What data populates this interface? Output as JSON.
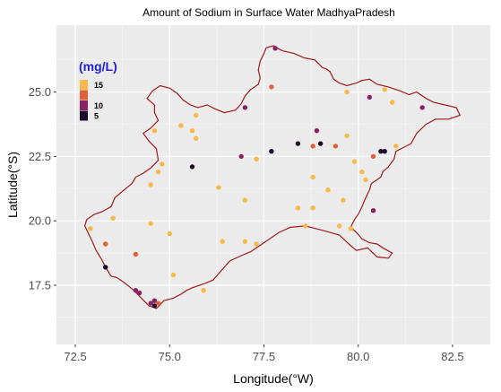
{
  "chart_data": {
    "type": "scatter",
    "title": "Amount of Sodium in Surface Water MadhyaPradesh",
    "xlabel": "Longitude(°W)",
    "ylabel": "Latitude(°S)",
    "xlim": [
      72.0,
      83.5
    ],
    "ylim": [
      15.2,
      27.6
    ],
    "x_ticks": [
      72.5,
      75.0,
      77.5,
      80.0,
      82.5
    ],
    "x_tick_labels": [
      "72.5",
      "75.0",
      "77.5",
      "80.0",
      "82.5"
    ],
    "y_ticks": [
      17.5,
      20.0,
      22.5,
      25.0
    ],
    "y_tick_labels": [
      "17.5",
      "20.0",
      "22.5",
      "25.0"
    ],
    "grid": true,
    "panel_background": "#ebebeb",
    "boundary_color": "#a01c1c",
    "legend": {
      "title": "(mg/L)",
      "title_color": "#1f1fd6",
      "position": "top-left",
      "entries": [
        {
          "label": "15",
          "color": "#f6b94a"
        },
        {
          "label": "",
          "color": "#e0623c"
        },
        {
          "label": "10",
          "color": "#8a2165"
        },
        {
          "label": "5",
          "color": "#1d0b2e"
        }
      ]
    },
    "boundary": [
      [
        77.56,
        26.72
      ],
      [
        77.76,
        26.8
      ],
      [
        77.86,
        26.7
      ],
      [
        78.0,
        26.6
      ],
      [
        78.3,
        26.5
      ],
      [
        78.57,
        26.33
      ],
      [
        78.85,
        26.25
      ],
      [
        78.95,
        26.1
      ],
      [
        79.05,
        25.95
      ],
      [
        79.15,
        25.9
      ],
      [
        79.25,
        25.8
      ],
      [
        79.35,
        25.5
      ],
      [
        79.5,
        25.35
      ],
      [
        79.7,
        25.25
      ],
      [
        79.95,
        25.35
      ],
      [
        80.1,
        25.45
      ],
      [
        80.3,
        25.5
      ],
      [
        80.5,
        25.3
      ],
      [
        80.8,
        25.2
      ],
      [
        81.1,
        25.05
      ],
      [
        81.35,
        24.9
      ],
      [
        81.55,
        25.0
      ],
      [
        81.8,
        24.75
      ],
      [
        82.0,
        24.6
      ],
      [
        82.3,
        24.5
      ],
      [
        82.6,
        24.4
      ],
      [
        82.7,
        24.1
      ],
      [
        82.4,
        23.95
      ],
      [
        82.05,
        23.95
      ],
      [
        81.8,
        23.75
      ],
      [
        81.55,
        23.4
      ],
      [
        81.4,
        23.0
      ],
      [
        81.2,
        22.85
      ],
      [
        81.0,
        22.7
      ],
      [
        80.95,
        22.4
      ],
      [
        80.8,
        22.1
      ],
      [
        80.65,
        21.9
      ],
      [
        80.6,
        21.7
      ],
      [
        80.45,
        21.55
      ],
      [
        80.35,
        21.45
      ],
      [
        80.3,
        21.2
      ],
      [
        80.2,
        20.9
      ],
      [
        80.1,
        20.55
      ],
      [
        80.0,
        20.25
      ],
      [
        79.9,
        20.05
      ],
      [
        79.8,
        19.75
      ],
      [
        79.95,
        19.55
      ],
      [
        80.1,
        19.3
      ],
      [
        80.3,
        19.15
      ],
      [
        80.5,
        19.1
      ],
      [
        80.65,
        18.95
      ],
      [
        80.9,
        18.75
      ],
      [
        80.8,
        18.55
      ],
      [
        80.5,
        18.6
      ],
      [
        80.25,
        18.95
      ],
      [
        79.95,
        18.85
      ],
      [
        79.75,
        19.1
      ],
      [
        79.5,
        19.45
      ],
      [
        79.25,
        19.55
      ],
      [
        79.0,
        19.65
      ],
      [
        78.6,
        19.8
      ],
      [
        78.2,
        19.75
      ],
      [
        77.9,
        19.55
      ],
      [
        77.6,
        19.25
      ],
      [
        77.35,
        19.0
      ],
      [
        77.15,
        18.8
      ],
      [
        76.9,
        18.65
      ],
      [
        76.6,
        18.45
      ],
      [
        76.45,
        18.2
      ],
      [
        76.3,
        17.95
      ],
      [
        76.15,
        17.7
      ],
      [
        75.9,
        17.55
      ],
      [
        75.6,
        17.4
      ],
      [
        75.45,
        17.3
      ],
      [
        75.3,
        17.15
      ],
      [
        75.1,
        17.0
      ],
      [
        74.85,
        16.9
      ],
      [
        74.65,
        16.6
      ],
      [
        74.45,
        16.7
      ],
      [
        74.25,
        17.0
      ],
      [
        74.05,
        17.3
      ],
      [
        73.8,
        17.6
      ],
      [
        73.6,
        17.8
      ],
      [
        73.45,
        17.85
      ],
      [
        73.3,
        18.2
      ],
      [
        73.2,
        18.5
      ],
      [
        73.05,
        18.85
      ],
      [
        72.95,
        19.2
      ],
      [
        72.85,
        19.5
      ],
      [
        72.75,
        19.8
      ],
      [
        72.8,
        20.05
      ],
      [
        73.0,
        20.25
      ],
      [
        73.2,
        20.35
      ],
      [
        73.45,
        20.55
      ],
      [
        73.55,
        20.9
      ],
      [
        73.75,
        21.15
      ],
      [
        74.0,
        21.45
      ],
      [
        74.1,
        21.7
      ],
      [
        74.3,
        21.85
      ],
      [
        74.5,
        22.05
      ],
      [
        74.7,
        22.35
      ],
      [
        74.65,
        22.8
      ],
      [
        74.45,
        23.1
      ],
      [
        74.3,
        23.4
      ],
      [
        74.5,
        23.6
      ],
      [
        74.7,
        23.9
      ],
      [
        74.6,
        24.2
      ],
      [
        74.6,
        24.5
      ],
      [
        74.4,
        24.75
      ],
      [
        74.55,
        25.05
      ],
      [
        74.75,
        25.25
      ],
      [
        75.0,
        25.15
      ],
      [
        75.2,
        24.95
      ],
      [
        75.35,
        24.7
      ],
      [
        75.55,
        24.5
      ],
      [
        75.75,
        24.4
      ],
      [
        76.0,
        24.5
      ],
      [
        76.2,
        24.35
      ],
      [
        76.45,
        24.2
      ],
      [
        76.75,
        24.3
      ],
      [
        76.9,
        24.55
      ],
      [
        77.0,
        24.85
      ],
      [
        77.15,
        25.1
      ],
      [
        77.35,
        25.3
      ],
      [
        77.4,
        25.55
      ],
      [
        77.35,
        25.85
      ],
      [
        77.4,
        26.2
      ],
      [
        77.5,
        26.5
      ],
      [
        77.56,
        26.72
      ]
    ],
    "points": [
      {
        "x": 77.8,
        "y": 26.7,
        "level": 10
      },
      {
        "x": 77.7,
        "y": 25.2,
        "level": 12
      },
      {
        "x": 80.7,
        "y": 25.1,
        "level": 15
      },
      {
        "x": 79.7,
        "y": 25.0,
        "level": 15
      },
      {
        "x": 80.3,
        "y": 24.8,
        "level": 10
      },
      {
        "x": 80.9,
        "y": 24.6,
        "level": 15
      },
      {
        "x": 81.7,
        "y": 24.4,
        "level": 10
      },
      {
        "x": 77.0,
        "y": 24.4,
        "level": 10
      },
      {
        "x": 75.7,
        "y": 24.1,
        "level": 15
      },
      {
        "x": 75.3,
        "y": 23.7,
        "level": 15
      },
      {
        "x": 75.6,
        "y": 23.5,
        "level": 15
      },
      {
        "x": 74.6,
        "y": 23.5,
        "level": 15
      },
      {
        "x": 78.9,
        "y": 23.5,
        "level": 10
      },
      {
        "x": 75.7,
        "y": 23.2,
        "level": 15
      },
      {
        "x": 79.7,
        "y": 23.3,
        "level": 15
      },
      {
        "x": 78.4,
        "y": 23.0,
        "level": 5
      },
      {
        "x": 78.8,
        "y": 22.9,
        "level": 12
      },
      {
        "x": 79.0,
        "y": 23.0,
        "level": 5
      },
      {
        "x": 79.4,
        "y": 22.9,
        "level": 12
      },
      {
        "x": 77.7,
        "y": 22.7,
        "level": 5
      },
      {
        "x": 80.6,
        "y": 22.7,
        "level": 5
      },
      {
        "x": 80.7,
        "y": 22.7,
        "level": 5
      },
      {
        "x": 81.0,
        "y": 22.9,
        "level": 15
      },
      {
        "x": 80.4,
        "y": 22.5,
        "level": 12
      },
      {
        "x": 76.9,
        "y": 22.5,
        "level": 10
      },
      {
        "x": 77.3,
        "y": 22.4,
        "level": 15
      },
      {
        "x": 74.8,
        "y": 22.2,
        "level": 15
      },
      {
        "x": 75.6,
        "y": 22.1,
        "level": 5
      },
      {
        "x": 74.7,
        "y": 21.9,
        "level": 15
      },
      {
        "x": 79.9,
        "y": 22.3,
        "level": 15
      },
      {
        "x": 80.1,
        "y": 21.9,
        "level": 15
      },
      {
        "x": 80.2,
        "y": 21.6,
        "level": 15
      },
      {
        "x": 74.5,
        "y": 21.4,
        "level": 15
      },
      {
        "x": 78.8,
        "y": 21.7,
        "level": 15
      },
      {
        "x": 76.3,
        "y": 21.3,
        "level": 15
      },
      {
        "x": 79.2,
        "y": 21.2,
        "level": 15
      },
      {
        "x": 77.0,
        "y": 20.8,
        "level": 15
      },
      {
        "x": 79.6,
        "y": 20.8,
        "level": 15
      },
      {
        "x": 78.4,
        "y": 20.5,
        "level": 15
      },
      {
        "x": 78.8,
        "y": 20.5,
        "level": 15
      },
      {
        "x": 80.4,
        "y": 20.4,
        "level": 10
      },
      {
        "x": 73.5,
        "y": 20.1,
        "level": 15
      },
      {
        "x": 74.5,
        "y": 19.9,
        "level": 15
      },
      {
        "x": 78.6,
        "y": 19.8,
        "level": 15
      },
      {
        "x": 79.5,
        "y": 19.8,
        "level": 15
      },
      {
        "x": 79.8,
        "y": 19.7,
        "level": 15
      },
      {
        "x": 72.9,
        "y": 19.7,
        "level": 15
      },
      {
        "x": 75.0,
        "y": 19.5,
        "level": 15
      },
      {
        "x": 73.3,
        "y": 19.1,
        "level": 12
      },
      {
        "x": 76.4,
        "y": 19.2,
        "level": 15
      },
      {
        "x": 77.0,
        "y": 19.2,
        "level": 15
      },
      {
        "x": 77.3,
        "y": 19.1,
        "level": 15
      },
      {
        "x": 74.1,
        "y": 18.7,
        "level": 12
      },
      {
        "x": 73.3,
        "y": 18.2,
        "level": 5
      },
      {
        "x": 75.1,
        "y": 17.9,
        "level": 15
      },
      {
        "x": 74.1,
        "y": 17.3,
        "level": 10
      },
      {
        "x": 74.2,
        "y": 17.2,
        "level": 10
      },
      {
        "x": 75.9,
        "y": 17.3,
        "level": 15
      },
      {
        "x": 74.6,
        "y": 16.9,
        "level": 10
      },
      {
        "x": 74.5,
        "y": 16.8,
        "level": 10
      },
      {
        "x": 74.7,
        "y": 16.8,
        "level": 12
      },
      {
        "x": 74.6,
        "y": 16.7,
        "level": 5
      }
    ]
  }
}
